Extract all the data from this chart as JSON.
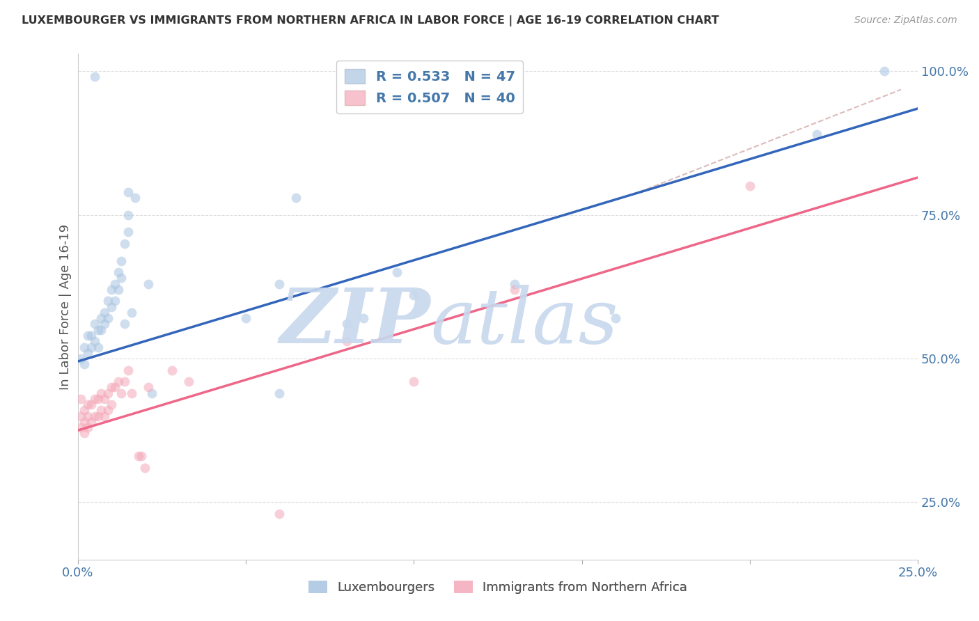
{
  "title": "LUXEMBOURGER VS IMMIGRANTS FROM NORTHERN AFRICA IN LABOR FORCE | AGE 16-19 CORRELATION CHART",
  "source": "Source: ZipAtlas.com",
  "ylabel": "In Labor Force | Age 16-19",
  "watermark_zip": "ZIP",
  "watermark_atlas": "atlas",
  "legend_top": [
    {
      "label": "R = 0.533   N = 47",
      "color": "#A8C4E0"
    },
    {
      "label": "R = 0.507   N = 40",
      "color": "#F4A8B8"
    }
  ],
  "legend_bottom": [
    "Luxembourgers",
    "Immigrants from Northern Africa"
  ],
  "xlim": [
    0.0,
    0.25
  ],
  "ylim": [
    0.15,
    1.03
  ],
  "yticks": [
    0.25,
    0.5,
    0.75,
    1.0
  ],
  "ytick_labels": [
    "25.0%",
    "50.0%",
    "75.0%",
    "100.0%"
  ],
  "xticks": [
    0.0,
    0.05,
    0.1,
    0.15,
    0.2,
    0.25
  ],
  "xtick_labels": [
    "0.0%",
    "",
    "",
    "",
    "",
    "25.0%"
  ],
  "blue_scatter": [
    [
      0.001,
      0.5
    ],
    [
      0.002,
      0.52
    ],
    [
      0.002,
      0.49
    ],
    [
      0.003,
      0.54
    ],
    [
      0.003,
      0.51
    ],
    [
      0.004,
      0.54
    ],
    [
      0.004,
      0.52
    ],
    [
      0.005,
      0.56
    ],
    [
      0.005,
      0.53
    ],
    [
      0.006,
      0.55
    ],
    [
      0.006,
      0.52
    ],
    [
      0.007,
      0.57
    ],
    [
      0.007,
      0.55
    ],
    [
      0.008,
      0.58
    ],
    [
      0.008,
      0.56
    ],
    [
      0.009,
      0.6
    ],
    [
      0.009,
      0.57
    ],
    [
      0.01,
      0.62
    ],
    [
      0.01,
      0.59
    ],
    [
      0.011,
      0.63
    ],
    [
      0.011,
      0.6
    ],
    [
      0.012,
      0.65
    ],
    [
      0.012,
      0.62
    ],
    [
      0.013,
      0.67
    ],
    [
      0.013,
      0.64
    ],
    [
      0.014,
      0.7
    ],
    [
      0.014,
      0.56
    ],
    [
      0.015,
      0.79
    ],
    [
      0.015,
      0.75
    ],
    [
      0.015,
      0.72
    ],
    [
      0.016,
      0.58
    ],
    [
      0.017,
      0.78
    ],
    [
      0.021,
      0.63
    ],
    [
      0.022,
      0.44
    ],
    [
      0.05,
      0.57
    ],
    [
      0.06,
      0.63
    ],
    [
      0.06,
      0.44
    ],
    [
      0.065,
      0.78
    ],
    [
      0.08,
      0.56
    ],
    [
      0.085,
      0.57
    ],
    [
      0.095,
      0.65
    ],
    [
      0.1,
      0.61
    ],
    [
      0.13,
      0.63
    ],
    [
      0.16,
      0.57
    ],
    [
      0.22,
      0.89
    ],
    [
      0.24,
      1.0
    ],
    [
      0.005,
      0.99
    ]
  ],
  "pink_scatter": [
    [
      0.001,
      0.43
    ],
    [
      0.001,
      0.4
    ],
    [
      0.001,
      0.38
    ],
    [
      0.002,
      0.41
    ],
    [
      0.002,
      0.39
    ],
    [
      0.002,
      0.37
    ],
    [
      0.003,
      0.42
    ],
    [
      0.003,
      0.4
    ],
    [
      0.003,
      0.38
    ],
    [
      0.004,
      0.42
    ],
    [
      0.004,
      0.39
    ],
    [
      0.005,
      0.43
    ],
    [
      0.005,
      0.4
    ],
    [
      0.006,
      0.43
    ],
    [
      0.006,
      0.4
    ],
    [
      0.007,
      0.44
    ],
    [
      0.007,
      0.41
    ],
    [
      0.008,
      0.43
    ],
    [
      0.008,
      0.4
    ],
    [
      0.009,
      0.44
    ],
    [
      0.009,
      0.41
    ],
    [
      0.01,
      0.45
    ],
    [
      0.01,
      0.42
    ],
    [
      0.011,
      0.45
    ],
    [
      0.012,
      0.46
    ],
    [
      0.013,
      0.44
    ],
    [
      0.014,
      0.46
    ],
    [
      0.015,
      0.48
    ],
    [
      0.016,
      0.44
    ],
    [
      0.018,
      0.33
    ],
    [
      0.019,
      0.33
    ],
    [
      0.02,
      0.31
    ],
    [
      0.021,
      0.45
    ],
    [
      0.028,
      0.48
    ],
    [
      0.033,
      0.46
    ],
    [
      0.06,
      0.23
    ],
    [
      0.08,
      0.53
    ],
    [
      0.1,
      0.46
    ],
    [
      0.13,
      0.62
    ],
    [
      0.2,
      0.8
    ]
  ],
  "blue_line_x": [
    0.0,
    0.25
  ],
  "blue_line_y": [
    0.495,
    0.935
  ],
  "pink_line_x": [
    0.0,
    0.25
  ],
  "pink_line_y": [
    0.375,
    0.815
  ],
  "dashed_line_x": [
    0.165,
    0.245
  ],
  "dashed_line_y": [
    0.785,
    0.968
  ],
  "blue_dot_color": "#A8C4E0",
  "pink_dot_color": "#F4A8B8",
  "blue_line_color": "#3366BB",
  "pink_line_color": "#EE6688",
  "dashed_line_color": "#DDBBBB",
  "axis_label_color": "#4477AA",
  "title_color": "#333333",
  "source_color": "#999999",
  "watermark_color": "#C8D8EE",
  "grid_color": "#DDDDDD",
  "bg_color": "#FFFFFF"
}
